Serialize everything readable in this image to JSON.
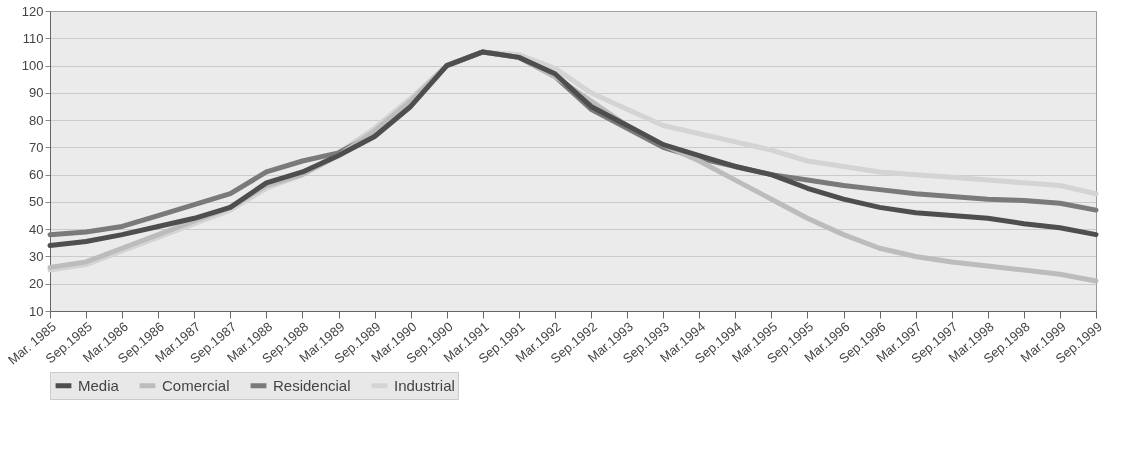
{
  "chart_data": {
    "type": "line",
    "categories": [
      "Mar. 1985",
      "Sep.1985",
      "Mar.1986",
      "Sep.1986",
      "Mar.1987",
      "Sep.1987",
      "Mar.1988",
      "Sep.1988",
      "Mar.1989",
      "Sep.1989",
      "Mar.1990",
      "Sep.1990",
      "Mar.1991",
      "Sep.1991",
      "Mar.1992",
      "Sep.1992",
      "Mar.1993",
      "Sep.1993",
      "Mar.1994",
      "Sep.1994",
      "Mar.1995",
      "Sep.1995",
      "Mar.1996",
      "Sep.1996",
      "Mar.1997",
      "Sep.1997",
      "Mar.1998",
      "Sep.1998",
      "Mar.1999",
      "Sep.1999"
    ],
    "series": [
      {
        "name": "Media",
        "color": "#4e4e4e",
        "values": [
          34,
          35.5,
          38,
          41,
          44,
          48,
          57,
          61,
          67,
          74,
          85,
          100,
          105,
          103,
          97,
          85,
          78,
          71,
          67,
          63,
          60,
          55,
          51,
          48,
          46,
          45,
          44,
          42,
          40.5,
          38
        ]
      },
      {
        "name": "Comercial",
        "color": "#bcbcbc",
        "values": [
          26,
          28,
          33,
          38,
          43,
          48,
          56,
          60,
          67,
          76,
          87,
          100,
          105,
          103,
          96,
          87,
          78,
          71,
          65,
          58,
          51,
          44,
          38,
          33,
          30,
          28,
          26.5,
          25,
          23.5,
          21
        ]
      },
      {
        "name": "Residencial",
        "color": "#7a7a7a",
        "values": [
          38,
          39,
          41,
          45,
          49,
          53,
          61,
          65,
          68,
          75,
          86,
          100,
          105,
          103,
          96,
          84,
          77,
          70,
          66,
          63,
          60,
          58,
          56,
          54.5,
          53,
          52,
          51,
          50.5,
          49.5,
          47
        ]
      },
      {
        "name": "Industrial",
        "color": "#d4d4d4",
        "values": [
          25,
          27,
          32,
          37,
          42,
          47,
          55,
          60,
          68,
          77,
          88,
          100,
          105,
          104,
          99,
          90,
          84,
          78,
          75,
          72,
          69,
          65,
          63,
          61,
          60,
          59,
          58,
          57,
          56,
          53
        ]
      }
    ],
    "ylim": [
      10,
      120
    ],
    "yticks": [
      10,
      20,
      30,
      40,
      50,
      60,
      70,
      80,
      90,
      100,
      110,
      120
    ],
    "grid": "y",
    "legend": "bottom",
    "line_style": "solid",
    "marker": "none"
  }
}
